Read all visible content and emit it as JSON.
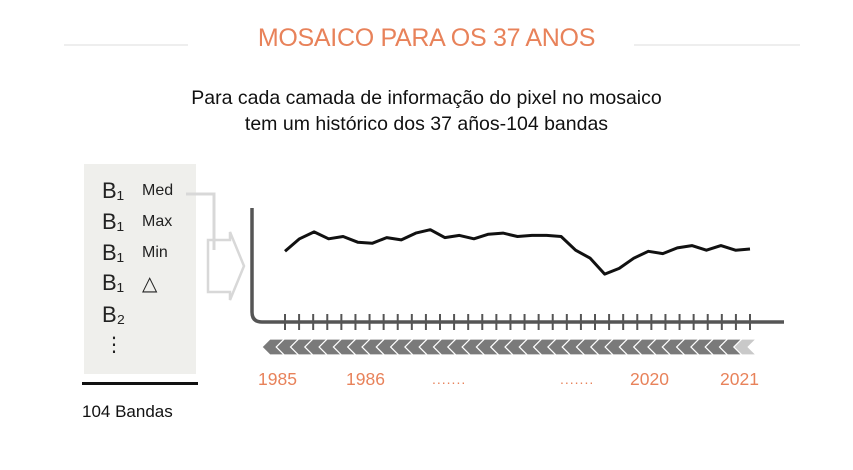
{
  "header": {
    "title": "MOSAICO PARA OS 37 ANOS",
    "subtitle_line1": "Para cada camada de informação do pixel no mosaico",
    "subtitle_line2": "tem um histórico dos 37 años-104 bandas"
  },
  "bands_panel": {
    "rows": [
      {
        "code": "B₁",
        "stat": "Med"
      },
      {
        "code": "B₁",
        "stat": "Max"
      },
      {
        "code": "B₁",
        "stat": "Min"
      },
      {
        "code": "B₁",
        "stat": "△"
      },
      {
        "code": "B₂",
        "stat": ""
      },
      {
        "code": "⋮",
        "stat": ""
      }
    ],
    "total_label": "104 Bandas"
  },
  "timeline": {
    "labels": [
      "1985",
      "1986",
      ".......",
      ".......",
      "2020",
      "2021"
    ]
  },
  "colors": {
    "accent": "#e8825a",
    "line": "#111111",
    "axis": "#555555",
    "panel": "#efefec",
    "arrow": "#d8d8d8"
  },
  "series_profile": [
    0.62,
    0.73,
    0.79,
    0.73,
    0.75,
    0.7,
    0.69,
    0.74,
    0.72,
    0.78,
    0.81,
    0.74,
    0.76,
    0.73,
    0.77,
    0.78,
    0.75,
    0.76,
    0.76,
    0.75,
    0.63,
    0.56,
    0.42,
    0.47,
    0.56,
    0.62,
    0.6,
    0.65,
    0.67,
    0.63,
    0.67,
    0.63,
    0.64
  ]
}
